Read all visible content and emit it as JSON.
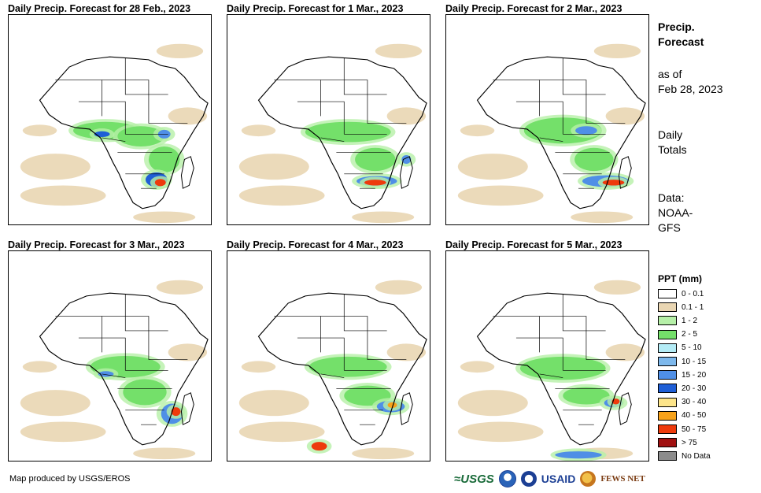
{
  "panels": [
    {
      "title": "Daily Precip. Forecast for 28 Feb., 2023"
    },
    {
      "title": "Daily Precip. Forecast for 1 Mar., 2023"
    },
    {
      "title": "Daily Precip. Forecast for 2 Mar., 2023"
    },
    {
      "title": "Daily Precip. Forecast for 3 Mar., 2023"
    },
    {
      "title": "Daily Precip. Forecast for 4 Mar., 2023"
    },
    {
      "title": "Daily Precip. Forecast for 5 Mar., 2023"
    }
  ],
  "side": {
    "heading_line1": "Precip.",
    "heading_line2": "Forecast",
    "asof_line1": "as of",
    "asof_line2": "Feb 28, 2023",
    "totals_line1": "Daily",
    "totals_line2": "Totals",
    "data_line1": "Data:",
    "data_line2": "NOAA-",
    "data_line3": "GFS"
  },
  "legend": {
    "title": "PPT (mm)",
    "items": [
      {
        "label": "0 - 0.1",
        "color": "#ffffff"
      },
      {
        "label": "0.1 - 1",
        "color": "#e9d6b3"
      },
      {
        "label": "1 - 2",
        "color": "#b6f0a8"
      },
      {
        "label": "2 - 5",
        "color": "#74e06a"
      },
      {
        "label": "5 - 10",
        "color": "#b4ecf6"
      },
      {
        "label": "10 - 15",
        "color": "#7db8ec"
      },
      {
        "label": "15 - 20",
        "color": "#4f8fe6"
      },
      {
        "label": "20 - 30",
        "color": "#1f5fd6"
      },
      {
        "label": "30 - 40",
        "color": "#fde58a"
      },
      {
        "label": "40 - 50",
        "color": "#f7a21a"
      },
      {
        "label": "50 - 75",
        "color": "#ee3a0c"
      },
      {
        "label": "> 75",
        "color": "#a01010"
      },
      {
        "label": "No Data",
        "color": "#8c8c8c"
      }
    ]
  },
  "footer": {
    "credit": "Map produced by USGS/EROS",
    "logo_usgs": "≈USGS",
    "logo_usaid": "USAID",
    "logo_fews": "FEWS NET"
  }
}
